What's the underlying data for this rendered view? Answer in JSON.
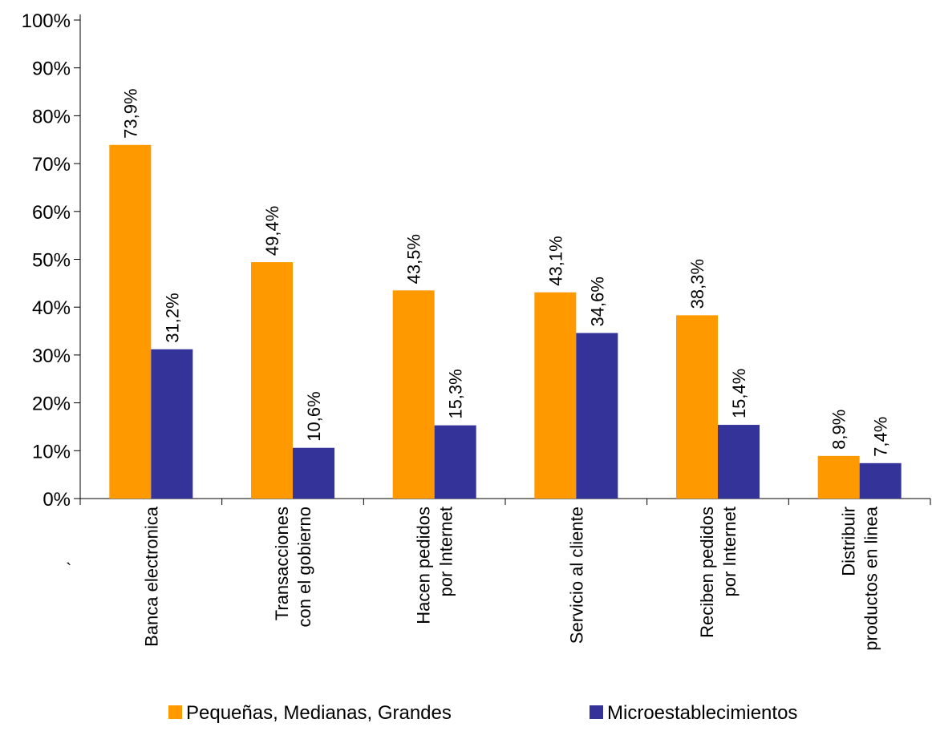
{
  "chart_data": {
    "type": "bar",
    "categories": [
      [
        "Banca electronica"
      ],
      [
        "Transacciones",
        "con el gobierno"
      ],
      [
        "Hacen pedidos",
        "por Internet"
      ],
      [
        "Servicio al cliente"
      ],
      [
        "Reciben pedidos",
        "por Internet"
      ],
      [
        "Distribuir",
        "productos en linea"
      ]
    ],
    "series": [
      {
        "name": "Pequeñas, Medianas, Grandes",
        "color": "#FF9900",
        "values": [
          73.9,
          49.4,
          43.5,
          43.1,
          38.3,
          8.9
        ],
        "labels": [
          "73,9%",
          "49,4%",
          "43,5%",
          "43,1%",
          "38,3%",
          "8,9%"
        ]
      },
      {
        "name": "Microestablecimientos",
        "color": "#333399",
        "values": [
          31.2,
          10.6,
          15.3,
          34.6,
          15.4,
          7.4
        ],
        "labels": [
          "31,2%",
          "10,6%",
          "15,3%",
          "34,6%",
          "15,4%",
          "7,4%"
        ]
      }
    ],
    "ylim": [
      0,
      100
    ],
    "yticks": [
      0,
      10,
      20,
      30,
      40,
      50,
      60,
      70,
      80,
      90,
      100
    ],
    "ytick_labels": [
      "0%",
      "10%",
      "20%",
      "30%",
      "40%",
      "50%",
      "60%",
      "70%",
      "80%",
      "90%",
      "100%"
    ],
    "grid": false,
    "legend_position": "bottom",
    "stray_mark": "`"
  }
}
